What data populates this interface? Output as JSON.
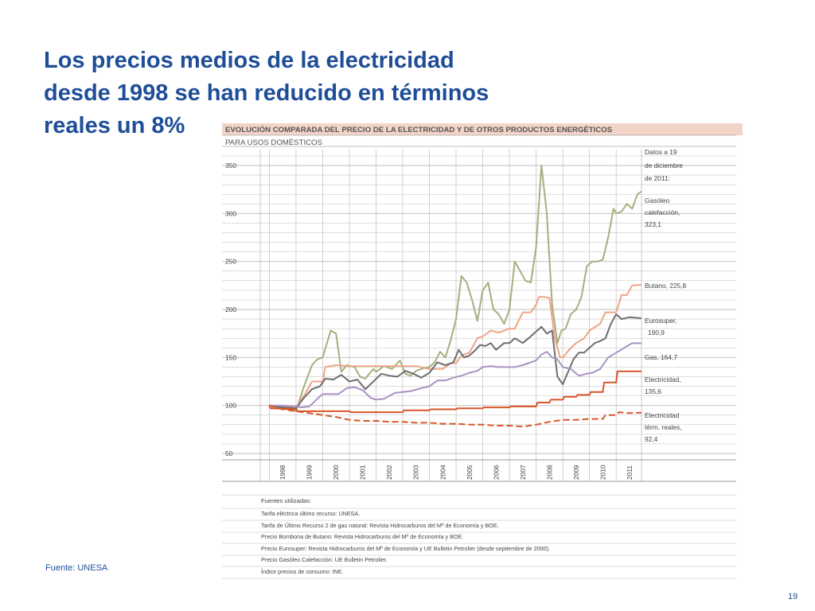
{
  "slide": {
    "title_lines": [
      "Los precios medios de la electricidad",
      "desde 1998 se han reducido en términos",
      "reales un 8%"
    ],
    "source_note": "Fuente: UNESA",
    "page_number": "19"
  },
  "colors": {
    "title": "#1f4e98",
    "header_band": "#f3d4c8",
    "grid": "#bdbdbd",
    "gasoleo": "#a4b07e",
    "butano": "#eda585",
    "eurosuper": "#6f6f6f",
    "gas": "#a993c2",
    "electricidad": "#d9552a",
    "reales": "#d9552a"
  },
  "chart_data": {
    "type": "line",
    "title": "EVOLUCIÓN COMPARADA DEL PRECIO DE LA ELECTRICIDAD Y DE OTROS PRODUCTOS ENERGÉTICOS",
    "subtitle": "PARA USOS DOMÉSTICOS",
    "xlabel": "",
    "ylabel": "",
    "ylim": [
      50,
      350
    ],
    "xlim": [
      1997.75,
      2011.95
    ],
    "yticks": [
      "350",
      "300",
      "250",
      "200",
      "150",
      "100",
      "50"
    ],
    "xticks": [
      "1998",
      "1999",
      "2000",
      "2001",
      "2002",
      "2003",
      "2004",
      "2005",
      "2006",
      "2007",
      "2008",
      "2009",
      "2010",
      "2011"
    ],
    "grid": true,
    "legend": "right",
    "date_note": [
      "Datos a 19",
      "de diciembre",
      "de 2011:"
    ],
    "series": [
      {
        "name": "Gasóleo calefacción",
        "label_lines": [
          "Gasóleo",
          "calefacción,",
          "323,1"
        ],
        "color_key": "gasoleo",
        "dash": false,
        "x": [
          1998.0,
          1998.5,
          1999.0,
          1999.3,
          1999.6,
          1999.8,
          2000.0,
          2000.3,
          2000.5,
          2000.7,
          2000.9,
          2001.2,
          2001.4,
          2001.6,
          2001.9,
          2002.0,
          2002.3,
          2002.6,
          2002.9,
          2003.1,
          2003.3,
          2003.5,
          2003.8,
          2004.0,
          2004.2,
          2004.4,
          2004.6,
          2004.8,
          2005.0,
          2005.2,
          2005.4,
          2005.6,
          2005.8,
          2006.0,
          2006.2,
          2006.4,
          2006.6,
          2006.8,
          2007.0,
          2007.2,
          2007.4,
          2007.6,
          2007.8,
          2008.0,
          2008.2,
          2008.4,
          2008.6,
          2008.8,
          2008.95,
          2009.1,
          2009.3,
          2009.5,
          2009.7,
          2009.9,
          2010.1,
          2010.3,
          2010.5,
          2010.7,
          2010.9,
          2011.0,
          2011.2,
          2011.4,
          2011.6,
          2011.8,
          2011.95
        ],
        "y": [
          100,
          97,
          94,
          120,
          142,
          148,
          150,
          178,
          175,
          135,
          142,
          140,
          130,
          128,
          138,
          135,
          141,
          138,
          147,
          133,
          131,
          136,
          139,
          140,
          145,
          156,
          150,
          168,
          190,
          235,
          228,
          210,
          188,
          220,
          228,
          200,
          195,
          185,
          200,
          250,
          240,
          230,
          228,
          265,
          350,
          300,
          205,
          165,
          178,
          180,
          195,
          200,
          213,
          245,
          250,
          250,
          252,
          275,
          305,
          300,
          302,
          310,
          305,
          320,
          323.1
        ]
      },
      {
        "name": "Butano",
        "label_lines": [
          "Butano, 225,8"
        ],
        "color_key": "butano",
        "dash": false,
        "x": [
          1998.0,
          1998.5,
          1999.0,
          1999.3,
          1999.5,
          1999.6,
          2000.0,
          2000.1,
          2000.5,
          2001.0,
          2001.5,
          2002.0,
          2002.5,
          2003.0,
          2003.5,
          2004.0,
          2004.5,
          2004.8,
          2005.0,
          2005.2,
          2005.5,
          2005.8,
          2006.0,
          2006.3,
          2006.6,
          2007.0,
          2007.2,
          2007.5,
          2007.8,
          2008.0,
          2008.1,
          2008.3,
          2008.5,
          2008.7,
          2008.9,
          2009.0,
          2009.3,
          2009.5,
          2009.8,
          2010.0,
          2010.4,
          2010.6,
          2010.8,
          2011.0,
          2011.2,
          2011.4,
          2011.6,
          2011.95
        ],
        "y": [
          100,
          99,
          98,
          110,
          120,
          125,
          125,
          140,
          142,
          141,
          141,
          141,
          141,
          141,
          141,
          138,
          138,
          144,
          144,
          152,
          155,
          170,
          172,
          178,
          176,
          180,
          180,
          197,
          197,
          205,
          213,
          213,
          212,
          170,
          150,
          150,
          160,
          165,
          170,
          178,
          185,
          197,
          197,
          197,
          215,
          215,
          225,
          225.8
        ]
      },
      {
        "name": "Eurosuper",
        "label_lines": [
          "Eurosuper,",
          "190,9"
        ],
        "color_key": "eurosuper",
        "dash": false,
        "x": [
          1998.0,
          1998.5,
          1999.0,
          1999.3,
          1999.6,
          1999.9,
          2000.1,
          2000.4,
          2000.7,
          2001.0,
          2001.3,
          2001.6,
          2001.9,
          2002.2,
          2002.5,
          2002.8,
          2003.1,
          2003.4,
          2003.7,
          2004.0,
          2004.3,
          2004.6,
          2004.9,
          2005.1,
          2005.3,
          2005.5,
          2005.7,
          2005.9,
          2006.1,
          2006.3,
          2006.5,
          2006.8,
          2007.0,
          2007.2,
          2007.5,
          2007.8,
          2008.0,
          2008.2,
          2008.4,
          2008.6,
          2008.8,
          2009.0,
          2009.2,
          2009.4,
          2009.6,
          2009.8,
          2010.0,
          2010.2,
          2010.4,
          2010.6,
          2010.8,
          2011.0,
          2011.2,
          2011.5,
          2011.95
        ],
        "y": [
          100,
          98,
          97,
          108,
          117,
          120,
          128,
          127,
          132,
          125,
          127,
          117,
          125,
          133,
          131,
          130,
          136,
          133,
          129,
          134,
          145,
          142,
          145,
          158,
          150,
          152,
          157,
          163,
          162,
          165,
          158,
          165,
          165,
          170,
          165,
          172,
          177,
          182,
          175,
          178,
          130,
          122,
          135,
          148,
          155,
          155,
          160,
          165,
          167,
          170,
          185,
          195,
          190,
          192,
          190.9
        ]
      },
      {
        "name": "Gas",
        "label_lines": [
          "Gas, 164,7"
        ],
        "color_key": "gas",
        "dash": false,
        "x": [
          1998.0,
          1998.5,
          1999.0,
          1999.2,
          1999.5,
          1999.8,
          2000.0,
          2000.3,
          2000.6,
          2000.9,
          2001.2,
          2001.5,
          2001.8,
          2002.0,
          2002.3,
          2002.7,
          2003.0,
          2003.3,
          2003.7,
          2004.0,
          2004.3,
          2004.6,
          2004.9,
          2005.2,
          2005.5,
          2005.8,
          2006.0,
          2006.3,
          2006.6,
          2006.9,
          2007.2,
          2007.5,
          2007.8,
          2008.0,
          2008.2,
          2008.4,
          2008.6,
          2008.8,
          2009.0,
          2009.3,
          2009.6,
          2009.9,
          2010.1,
          2010.4,
          2010.7,
          2011.0,
          2011.3,
          2011.6,
          2011.95
        ],
        "y": [
          100,
          100,
          99,
          98,
          99,
          107,
          112,
          112,
          112,
          118,
          119,
          116,
          108,
          106,
          107,
          113,
          114,
          115,
          118,
          120,
          126,
          126,
          129,
          131,
          134,
          136,
          140,
          141,
          140,
          140,
          140,
          142,
          145,
          147,
          153,
          156,
          150,
          148,
          140,
          138,
          131,
          133,
          134,
          138,
          150,
          155,
          160,
          165,
          164.7
        ]
      },
      {
        "name": "Electricidad",
        "label_lines": [
          "Electricidad,",
          "135,6"
        ],
        "color_key": "electricidad",
        "dash": false,
        "x": [
          1998.0,
          1998.05,
          1999.0,
          1999.05,
          2000.0,
          2001.0,
          2001.05,
          2003.0,
          2003.05,
          2004.0,
          2004.05,
          2005.0,
          2005.05,
          2006.0,
          2006.05,
          2007.0,
          2007.05,
          2008.0,
          2008.05,
          2008.5,
          2008.55,
          2009.0,
          2009.05,
          2009.5,
          2009.55,
          2010.0,
          2010.05,
          2010.5,
          2010.55,
          2011.0,
          2011.05,
          2011.95
        ],
        "y": [
          100,
          97,
          96,
          94,
          94,
          94,
          93,
          93,
          95,
          95,
          96,
          96,
          97,
          97,
          98,
          98,
          99,
          99,
          103,
          103,
          106,
          106,
          109,
          109,
          111,
          111,
          114,
          114,
          124,
          124,
          135.6,
          135.6
        ]
      },
      {
        "name": "Electricidad térm. reales",
        "label_lines": [
          "Electricidad",
          "térm. reales,",
          "92,4"
        ],
        "color_key": "reales",
        "dash": true,
        "x": [
          1998.0,
          1998.5,
          1999.0,
          1999.5,
          2000.0,
          2000.5,
          2001.0,
          2001.5,
          2002.0,
          2002.5,
          2003.0,
          2003.5,
          2004.0,
          2004.5,
          2005.0,
          2005.5,
          2006.0,
          2006.5,
          2007.0,
          2007.5,
          2008.0,
          2008.5,
          2009.0,
          2009.5,
          2010.0,
          2010.5,
          2010.6,
          2011.0,
          2011.1,
          2011.5,
          2011.95
        ],
        "y": [
          100,
          96,
          94,
          92,
          90,
          88,
          85,
          84,
          84,
          83,
          83,
          82,
          82,
          81,
          81,
          80,
          80,
          79,
          79,
          78,
          80,
          83,
          85,
          85,
          86,
          86,
          90,
          90,
          93,
          92,
          92.4
        ]
      }
    ],
    "fuentes": {
      "heading": "Fuentes utilizadas:",
      "items": [
        "Tarifa eléctrica último recurso: UNESA.",
        "Tarifa de Último Recurso 2 de gas natural: Revista Hidrocarburos del Mº de Economía y BOE.",
        "Precio Bombona de Butano: Revista Hidrocarburos del Mº de Economía y BOE.",
        "Precio Eurosuper: Revista Hidrocarburos del Mº de Economía y UE Bulletin Petrolier (desde septiembre de 2000).",
        "Precio Gasóleo Calefacción: UE Bulletin Petrolier.",
        "Índice precios de consumo: INE."
      ]
    }
  }
}
